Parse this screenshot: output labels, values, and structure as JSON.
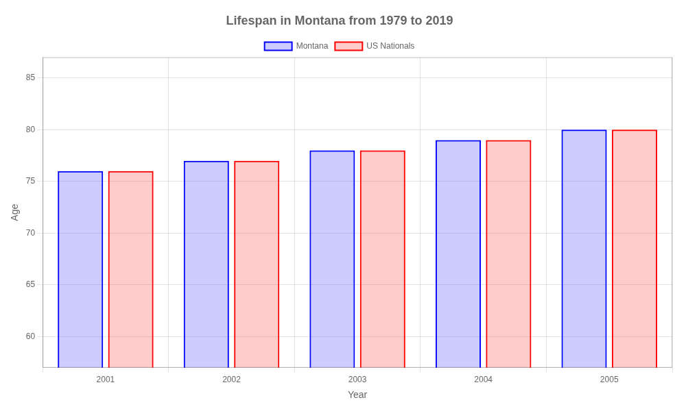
{
  "chart_data": {
    "type": "bar",
    "title": "Lifespan in Montana from 1979 to 2019",
    "x_label": "Year",
    "y_label": "Age",
    "categories": [
      "2001",
      "2002",
      "2003",
      "2004",
      "2005"
    ],
    "series": [
      {
        "name": "Montana",
        "color": "#0000ff",
        "values": [
          76,
          77,
          78,
          79,
          80
        ]
      },
      {
        "name": "US Nationals",
        "color": "#ff0000",
        "values": [
          76,
          77,
          78,
          79,
          80
        ]
      }
    ],
    "ylim": [
      57,
      87
    ],
    "yticks": [
      60,
      65,
      70,
      75,
      80,
      85
    ],
    "grid": true,
    "legend": "top"
  }
}
